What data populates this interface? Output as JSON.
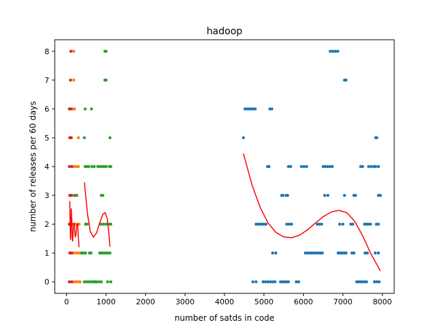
{
  "chart_data": {
    "type": "scatter",
    "title": "hadoop",
    "xlabel": "number of satds in code",
    "ylabel": "number of releases per 60 days",
    "xlim": [
      -300,
      8300
    ],
    "ylim": [
      -0.4,
      8.4
    ],
    "xticks": [
      0,
      1000,
      2000,
      3000,
      4000,
      5000,
      6000,
      7000,
      8000
    ],
    "yticks": [
      0,
      1,
      2,
      3,
      4,
      5,
      6,
      7,
      8
    ],
    "grid": false,
    "colors": {
      "s1": "#1f77b4",
      "s2": "#ff7f0e",
      "s3": "#2ca02c",
      "s4": "#d62728",
      "fit": "#ff0000"
    },
    "scatter_series": [
      {
        "color_key": "s1",
        "segments": [
          [
            4480,
            4480,
            5
          ],
          [
            4520,
            4780,
            6
          ],
          [
            5150,
            5200,
            6
          ],
          [
            4720,
            4800,
            0
          ],
          [
            4980,
            5280,
            0
          ],
          [
            5420,
            5620,
            0
          ],
          [
            5820,
            5880,
            0
          ],
          [
            7350,
            7600,
            0
          ],
          [
            7800,
            7920,
            0
          ],
          [
            5220,
            5300,
            1
          ],
          [
            6050,
            6480,
            1
          ],
          [
            6880,
            7080,
            1
          ],
          [
            7230,
            7280,
            1
          ],
          [
            7560,
            7620,
            1
          ],
          [
            7820,
            7900,
            1
          ],
          [
            4800,
            5050,
            2
          ],
          [
            5580,
            5700,
            2
          ],
          [
            6350,
            6460,
            2
          ],
          [
            6920,
            7000,
            2
          ],
          [
            7200,
            7250,
            2
          ],
          [
            7550,
            7700,
            2
          ],
          [
            7850,
            7900,
            2
          ],
          [
            5450,
            5480,
            3
          ],
          [
            5560,
            5600,
            3
          ],
          [
            6540,
            6620,
            3
          ],
          [
            7040,
            7060,
            3
          ],
          [
            7280,
            7320,
            3
          ],
          [
            7900,
            7950,
            3
          ],
          [
            5090,
            5130,
            4
          ],
          [
            5620,
            5680,
            4
          ],
          [
            5950,
            6080,
            4
          ],
          [
            6500,
            6730,
            4
          ],
          [
            7450,
            7500,
            4
          ],
          [
            7650,
            7780,
            4
          ],
          [
            7830,
            7900,
            4
          ],
          [
            7830,
            7860,
            5
          ],
          [
            7040,
            7080,
            7
          ],
          [
            6680,
            6870,
            8
          ]
        ]
      },
      {
        "color_key": "s2",
        "segments": [
          [
            180,
            340,
            0
          ],
          [
            150,
            330,
            1
          ],
          [
            120,
            320,
            2
          ],
          [
            130,
            260,
            3
          ],
          [
            140,
            300,
            4
          ],
          [
            300,
            320,
            5
          ],
          [
            160,
            200,
            6
          ],
          [
            180,
            200,
            7
          ],
          [
            180,
            200,
            8
          ]
        ]
      },
      {
        "color_key": "s3",
        "segments": [
          [
            450,
            720,
            0
          ],
          [
            700,
            880,
            0
          ],
          [
            1040,
            1120,
            0
          ],
          [
            380,
            480,
            1
          ],
          [
            580,
            620,
            1
          ],
          [
            840,
            1100,
            1
          ],
          [
            480,
            520,
            2
          ],
          [
            870,
            1000,
            2
          ],
          [
            1080,
            1120,
            2
          ],
          [
            200,
            250,
            3
          ],
          [
            880,
            920,
            3
          ],
          [
            470,
            560,
            4
          ],
          [
            640,
            700,
            4
          ],
          [
            790,
            1000,
            4
          ],
          [
            1080,
            1120,
            4
          ],
          [
            450,
            450,
            5
          ],
          [
            1100,
            1100,
            5
          ],
          [
            470,
            470,
            6
          ],
          [
            630,
            650,
            6
          ],
          [
            970,
            1000,
            7
          ],
          [
            970,
            1000,
            8
          ]
        ]
      },
      {
        "color_key": "s4",
        "segments": [
          [
            70,
            130,
            0
          ],
          [
            80,
            130,
            1
          ],
          [
            70,
            120,
            2
          ],
          [
            80,
            120,
            3
          ],
          [
            70,
            130,
            4
          ],
          [
            80,
            120,
            5
          ],
          [
            70,
            110,
            6
          ],
          [
            100,
            120,
            7
          ],
          [
            110,
            130,
            8
          ]
        ]
      }
    ],
    "fit_curves": [
      {
        "color_key": "fit",
        "points": [
          [
            4480,
            4.45
          ],
          [
            4700,
            3.35
          ],
          [
            4900,
            2.6
          ],
          [
            5100,
            2.05
          ],
          [
            5300,
            1.72
          ],
          [
            5500,
            1.56
          ],
          [
            5700,
            1.53
          ],
          [
            5900,
            1.62
          ],
          [
            6100,
            1.8
          ],
          [
            6300,
            2.04
          ],
          [
            6500,
            2.26
          ],
          [
            6700,
            2.42
          ],
          [
            6900,
            2.48
          ],
          [
            7100,
            2.4
          ],
          [
            7300,
            2.1
          ],
          [
            7500,
            1.6
          ],
          [
            7700,
            1.0
          ],
          [
            7950,
            0.38
          ]
        ]
      },
      {
        "color_key": "fit",
        "points": [
          [
            450,
            3.45
          ],
          [
            530,
            2.35
          ],
          [
            600,
            1.75
          ],
          [
            680,
            1.55
          ],
          [
            760,
            1.7
          ],
          [
            840,
            2.05
          ],
          [
            920,
            2.35
          ],
          [
            980,
            2.4
          ],
          [
            1030,
            2.2
          ],
          [
            1070,
            1.7
          ],
          [
            1100,
            1.22
          ]
        ]
      },
      {
        "color_key": "fit",
        "points": [
          [
            80,
            2.8
          ],
          [
            90,
            1.9
          ],
          [
            100,
            1.45
          ],
          [
            110,
            2.1
          ],
          [
            120,
            2.55
          ],
          [
            130,
            2.2
          ],
          [
            140,
            1.55
          ],
          [
            155,
            1.4
          ],
          [
            170,
            1.85
          ],
          [
            185,
            2.05
          ],
          [
            200,
            1.9
          ],
          [
            220,
            1.55
          ],
          [
            240,
            1.65
          ],
          [
            260,
            2.0
          ],
          [
            280,
            2.0
          ],
          [
            300,
            1.5
          ],
          [
            315,
            1.2
          ]
        ]
      }
    ]
  }
}
